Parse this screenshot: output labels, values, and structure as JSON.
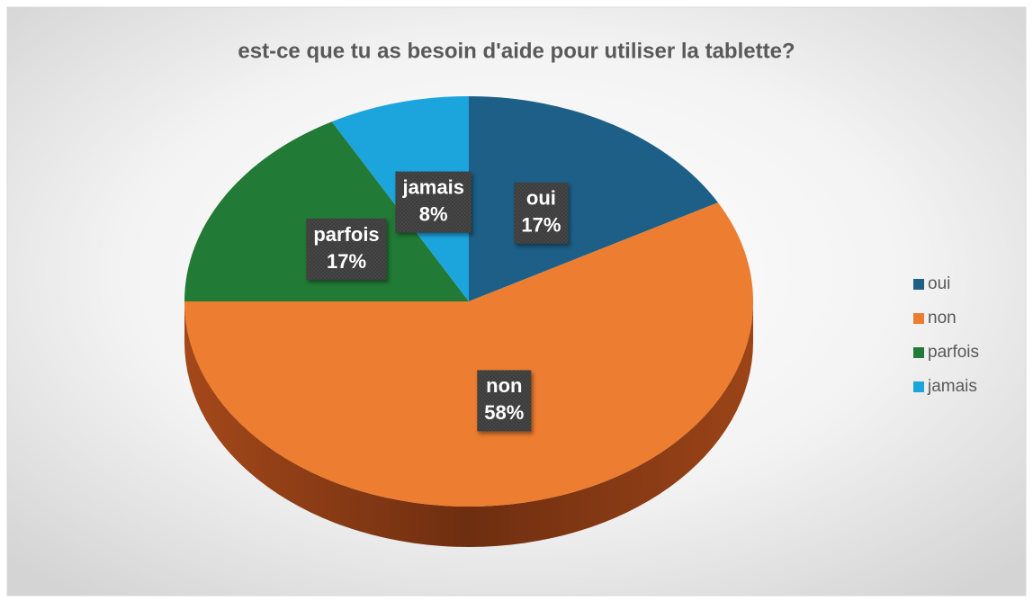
{
  "chart_data": {
    "type": "pie",
    "title": "est-ce que tu as besoin d'aide pour utiliser la tablette?",
    "categories": [
      "oui",
      "non",
      "parfois",
      "jamais"
    ],
    "values": [
      17,
      58,
      17,
      8
    ],
    "value_labels": [
      "17%",
      "58%",
      "17%",
      "8%"
    ],
    "colors": [
      "#1d5f87",
      "#ed7d31",
      "#217a35",
      "#1ca4dd"
    ],
    "legend": "right"
  }
}
